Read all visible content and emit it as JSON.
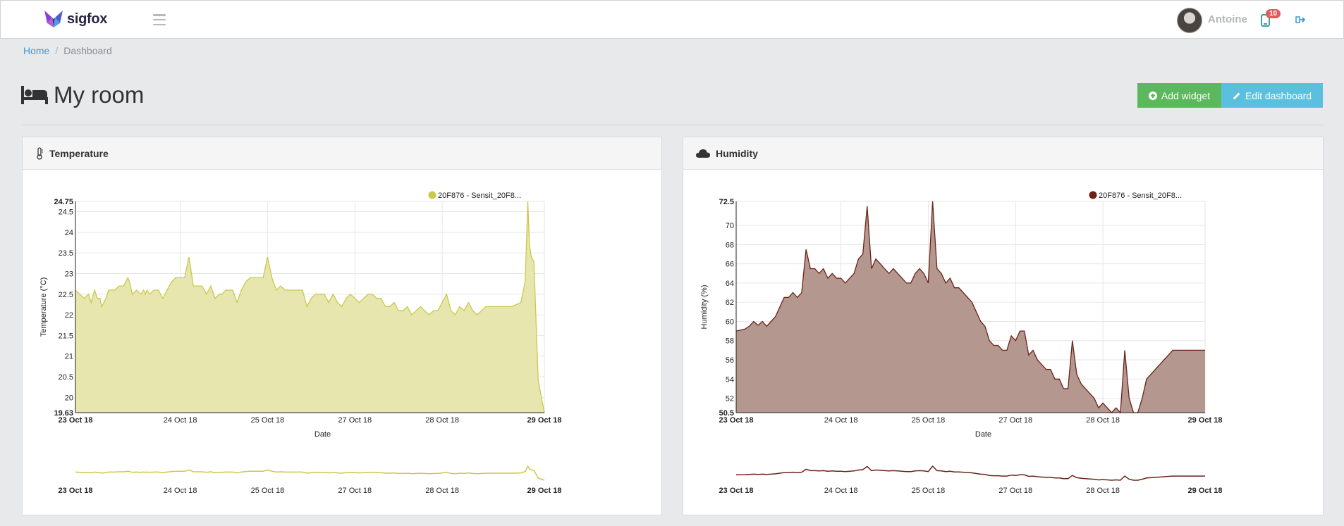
{
  "app": {
    "brand": "sigfox"
  },
  "header": {
    "user_name": "Antoine",
    "notification_count": "10"
  },
  "breadcrumb": {
    "home": "Home",
    "separator": "/",
    "current": "Dashboard"
  },
  "page": {
    "title": "My room",
    "add_widget_label": "Add widget",
    "edit_dashboard_label": "Edit dashboard"
  },
  "widgets": [
    {
      "title": "Temperature",
      "icon": "thermometer-icon"
    },
    {
      "title": "Humidity",
      "icon": "cloud-icon"
    }
  ],
  "colors": {
    "accent_blue": "#3a9ad9",
    "btn_green": "#5cb85c",
    "btn_blue": "#5bc0de",
    "temp_line": "#c9c94a",
    "temp_fill": "#e6e6ae",
    "hum_line": "#6b2317",
    "hum_fill": "#b4978f"
  },
  "chart_data": [
    {
      "type": "area",
      "title": "Temperature",
      "xlabel": "Date",
      "ylabel": "Temperature (°C)",
      "legend": [
        "20F876 - Sensit_20F8..."
      ],
      "legend_placement": "top-right",
      "grid": true,
      "x_ticks": [
        "23 Oct 18",
        "24 Oct 18",
        "25 Oct 18",
        "27 Oct 18",
        "28 Oct 18",
        "29 Oct 18"
      ],
      "x_ticks_bold": [
        true,
        false,
        false,
        false,
        false,
        true
      ],
      "x_range": [
        0,
        5.37
      ],
      "x_tick_pos": [
        0,
        1.2,
        2.2,
        3.2,
        4.2,
        5.37
      ],
      "y_ticks": [
        19.63,
        20,
        20.5,
        21,
        21.5,
        22,
        22.5,
        23,
        23.5,
        24,
        24.5,
        24.75
      ],
      "y_ticks_bold": [
        true,
        false,
        false,
        false,
        false,
        false,
        false,
        false,
        false,
        false,
        false,
        true
      ],
      "ylim": [
        19.63,
        24.75
      ],
      "series": [
        {
          "name": "20F876 - Sensit_20F8...",
          "x": [
            0,
            0.05,
            0.1,
            0.15,
            0.18,
            0.22,
            0.25,
            0.28,
            0.3,
            0.35,
            0.38,
            0.4,
            0.45,
            0.5,
            0.55,
            0.6,
            0.62,
            0.65,
            0.7,
            0.75,
            0.78,
            0.8,
            0.82,
            0.85,
            0.9,
            0.95,
            1.0,
            1.05,
            1.1,
            1.15,
            1.2,
            1.25,
            1.3,
            1.35,
            1.4,
            1.45,
            1.5,
            1.55,
            1.6,
            1.65,
            1.68,
            1.72,
            1.8,
            1.85,
            1.9,
            1.95,
            2.0,
            2.05,
            2.1,
            2.15,
            2.2,
            2.25,
            2.3,
            2.35,
            2.4,
            2.45,
            2.5,
            2.55,
            2.6,
            2.65,
            2.7,
            2.75,
            2.8,
            2.85,
            2.9,
            2.95,
            3.0,
            3.05,
            3.1,
            3.15,
            3.2,
            3.25,
            3.3,
            3.35,
            3.4,
            3.45,
            3.5,
            3.55,
            3.6,
            3.65,
            3.7,
            3.75,
            3.8,
            3.85,
            3.9,
            3.95,
            4.0,
            4.05,
            4.1,
            4.15,
            4.2,
            4.25,
            4.3,
            4.35,
            4.4,
            4.45,
            4.5,
            4.55,
            4.6,
            4.65,
            4.7,
            4.75,
            4.8,
            4.85,
            4.9,
            5.0,
            5.1,
            5.15,
            5.18,
            5.2,
            5.22,
            5.25,
            5.3,
            5.37
          ],
          "y": [
            22.6,
            22.5,
            22.4,
            22.5,
            22.3,
            22.6,
            22.4,
            22.4,
            22.2,
            22.4,
            22.6,
            22.6,
            22.6,
            22.7,
            22.7,
            22.9,
            22.8,
            22.5,
            22.6,
            22.5,
            22.6,
            22.5,
            22.6,
            22.5,
            22.6,
            22.6,
            22.4,
            22.6,
            22.8,
            22.9,
            22.9,
            22.9,
            23.4,
            22.7,
            22.7,
            22.7,
            22.5,
            22.7,
            22.4,
            22.5,
            22.5,
            22.6,
            22.6,
            22.3,
            22.6,
            22.8,
            22.9,
            22.9,
            22.9,
            22.9,
            23.4,
            22.9,
            22.6,
            22.7,
            22.6,
            22.6,
            22.6,
            22.6,
            22.6,
            22.2,
            22.4,
            22.5,
            22.5,
            22.5,
            22.3,
            22.5,
            22.3,
            22.2,
            22.4,
            22.5,
            22.4,
            22.3,
            22.4,
            22.5,
            22.5,
            22.4,
            22.4,
            22.2,
            22.2,
            22.3,
            22.1,
            22.1,
            22.2,
            22.0,
            22.1,
            22.2,
            22.1,
            22.0,
            22.1,
            22.1,
            22.3,
            22.5,
            22.1,
            22.0,
            22.2,
            22.1,
            22.3,
            22.1,
            22.0,
            22.1,
            22.2,
            22.2,
            22.2,
            22.2,
            22.2,
            22.2,
            22.3,
            22.8,
            24.75,
            23.7,
            23.4,
            23.3,
            20.4,
            19.63
          ]
        }
      ]
    },
    {
      "type": "area",
      "title": "Humidity",
      "xlabel": "Date",
      "ylabel": "Humidity (%)",
      "legend": [
        "20F876 - Sensit_20F8..."
      ],
      "legend_placement": "top-right",
      "grid": true,
      "x_ticks": [
        "23 Oct 18",
        "24 Oct 18",
        "25 Oct 18",
        "27 Oct 18",
        "28 Oct 18",
        "29 Oct 18"
      ],
      "x_ticks_bold": [
        true,
        false,
        false,
        false,
        false,
        true
      ],
      "x_range": [
        0,
        5.37
      ],
      "x_tick_pos": [
        0,
        1.2,
        2.2,
        3.2,
        4.2,
        5.37
      ],
      "y_ticks": [
        50.5,
        52,
        54,
        56,
        58,
        60,
        62,
        64,
        66,
        68,
        70,
        72.5
      ],
      "y_ticks_bold": [
        true,
        false,
        false,
        false,
        false,
        false,
        false,
        false,
        false,
        false,
        false,
        true
      ],
      "ylim": [
        50.5,
        72.5
      ],
      "series": [
        {
          "name": "20F876 - Sensit_20F8...",
          "x": [
            0,
            0.1,
            0.15,
            0.2,
            0.25,
            0.3,
            0.35,
            0.4,
            0.45,
            0.5,
            0.55,
            0.6,
            0.65,
            0.7,
            0.75,
            0.8,
            0.8,
            0.85,
            0.9,
            0.95,
            1.0,
            1.05,
            1.1,
            1.15,
            1.2,
            1.25,
            1.3,
            1.35,
            1.4,
            1.45,
            1.5,
            1.55,
            1.6,
            1.65,
            1.7,
            1.75,
            1.8,
            1.85,
            1.9,
            1.95,
            2.0,
            2.05,
            2.1,
            2.15,
            2.2,
            2.25,
            2.3,
            2.35,
            2.4,
            2.45,
            2.5,
            2.55,
            2.6,
            2.7,
            2.75,
            2.8,
            2.85,
            2.9,
            2.95,
            3.0,
            3.05,
            3.1,
            3.15,
            3.2,
            3.25,
            3.3,
            3.35,
            3.4,
            3.45,
            3.5,
            3.55,
            3.6,
            3.65,
            3.7,
            3.75,
            3.8,
            3.85,
            3.9,
            3.95,
            4.0,
            4.05,
            4.1,
            4.15,
            4.2,
            4.25,
            4.3,
            4.35,
            4.4,
            4.45,
            4.5,
            4.55,
            4.6,
            4.65,
            4.7,
            4.75,
            4.8,
            4.85,
            4.9,
            4.95,
            5.0,
            5.05,
            5.1,
            5.15,
            5.2,
            5.25,
            5.3,
            5.37
          ],
          "y": [
            59.0,
            59.2,
            59.5,
            60.0,
            59.6,
            60.0,
            59.5,
            60.0,
            60.5,
            61.5,
            62.5,
            62.5,
            63.0,
            62.5,
            63.0,
            67.5,
            67.5,
            65.5,
            65.5,
            65.0,
            65.5,
            64.5,
            65.0,
            64.5,
            64.5,
            64.0,
            64.5,
            65.0,
            66.5,
            67.0,
            72.0,
            65.5,
            66.5,
            66.0,
            65.5,
            65.0,
            65.5,
            65.0,
            64.5,
            64.0,
            64.0,
            65.0,
            65.5,
            65.0,
            64.0,
            72.5,
            65.5,
            65.0,
            64.0,
            64.5,
            63.5,
            63.5,
            63.0,
            62.0,
            61.0,
            60.0,
            59.5,
            58.0,
            57.5,
            57.5,
            57.0,
            57.0,
            58.5,
            58.0,
            59.0,
            59.0,
            56.5,
            57.0,
            56.0,
            55.5,
            55.0,
            55.0,
            54.0,
            54.0,
            53.0,
            53.0,
            58.0,
            54.5,
            53.5,
            53.0,
            52.5,
            52.0,
            51.0,
            51.5,
            51.0,
            50.5,
            51.0,
            50.5,
            57.0,
            52.0,
            50.5,
            50.5,
            52.0,
            54.0,
            54.5,
            55.0,
            55.5,
            56.0,
            56.5,
            57.0,
            57.0,
            57.0,
            57.0,
            57.0,
            57.0,
            57.0,
            57.0
          ]
        }
      ]
    }
  ]
}
